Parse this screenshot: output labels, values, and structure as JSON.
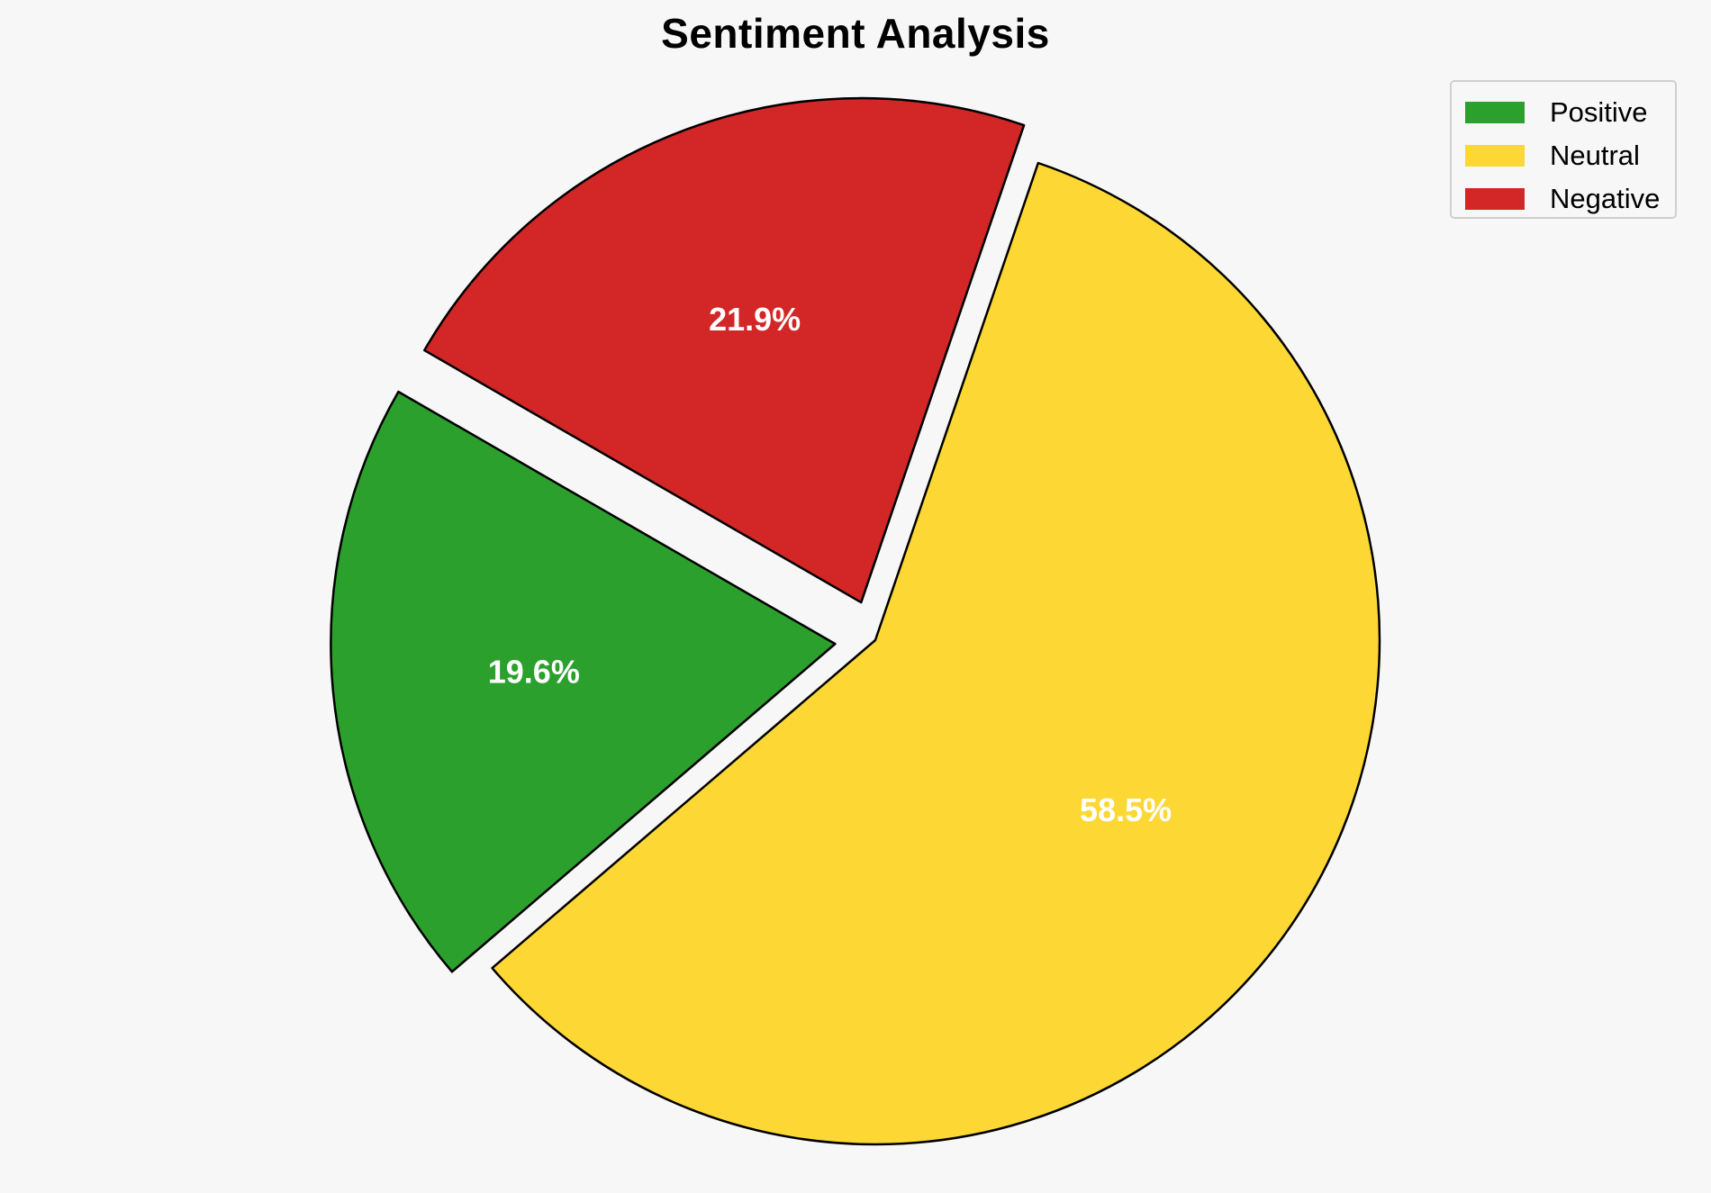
{
  "chart_data": {
    "type": "pie",
    "title": "Sentiment Analysis",
    "categories": [
      "Positive",
      "Neutral",
      "Negative"
    ],
    "values": [
      19.6,
      58.5,
      21.9
    ],
    "labels": [
      "19.6%",
      "58.5%",
      "21.9%"
    ],
    "colors": [
      "#2ca02c",
      "#fdd835",
      "#d32626"
    ],
    "exploded": [
      true,
      false,
      true
    ],
    "edge_color": "#000000",
    "background": "#f7f7f7",
    "legend_position": "top-right"
  },
  "legend": {
    "items": [
      {
        "label": "Positive",
        "color": "#2ca02c"
      },
      {
        "label": "Neutral",
        "color": "#fdd835"
      },
      {
        "label": "Negative",
        "color": "#d32626"
      }
    ]
  }
}
